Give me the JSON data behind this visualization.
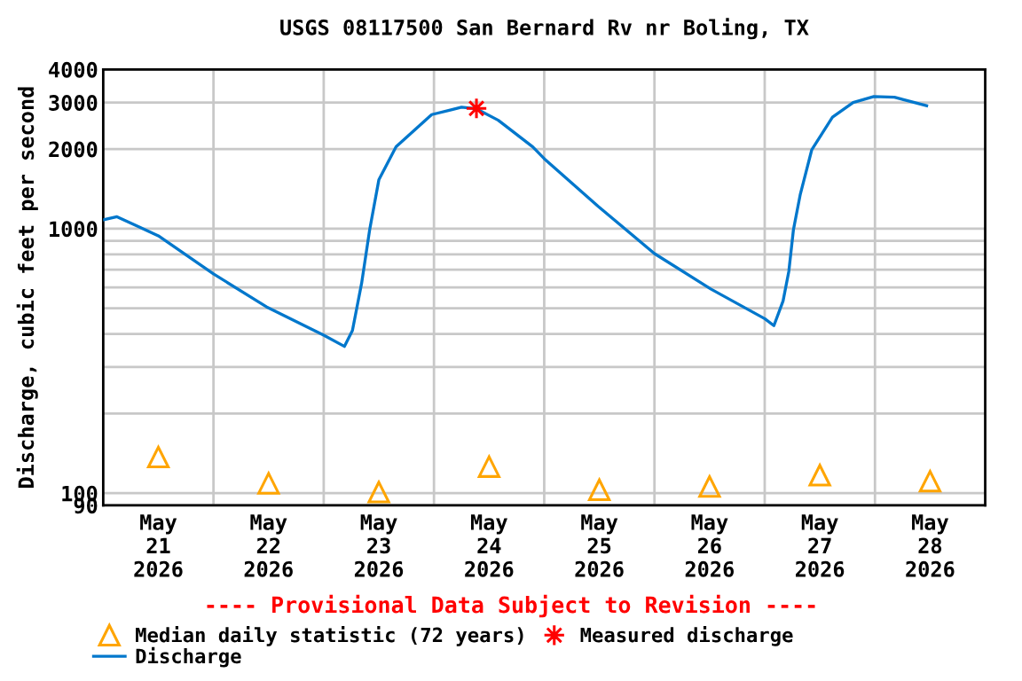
{
  "chart_data": {
    "type": "line",
    "title": "USGS 08117500 San Bernard Rv nr Boling, TX",
    "ylabel": "Discharge, cubic feet per second",
    "log": "y",
    "grid": true,
    "legend": "bottom",
    "xlim": [
      "2026-05-21T00:00",
      "2026-05-29T00:00"
    ],
    "xticks": [
      {
        "value": "2026-05-21T12:00",
        "label": "May\n21\n2026"
      },
      {
        "value": "2026-05-22T12:00",
        "label": "May\n22\n2026"
      },
      {
        "value": "2026-05-23T12:00",
        "label": "May\n23\n2026"
      },
      {
        "value": "2026-05-24T12:00",
        "label": "May\n24\n2026"
      },
      {
        "value": "2026-05-25T12:00",
        "label": "May\n25\n2026"
      },
      {
        "value": "2026-05-26T12:00",
        "label": "May\n26\n2026"
      },
      {
        "value": "2026-05-27T12:00",
        "label": "May\n27\n2026"
      },
      {
        "value": "2026-05-28T12:00",
        "label": "May\n28\n2026"
      },
      {
        "value": "2026-05-22T00:00",
        "label": null
      },
      {
        "value": "2026-05-23T00:00",
        "label": null
      },
      {
        "value": "2026-05-24T00:00",
        "label": null
      },
      {
        "value": "2026-05-25T00:00",
        "label": null
      },
      {
        "value": "2026-05-26T00:00",
        "label": null
      },
      {
        "value": "2026-05-27T00:00",
        "label": null
      },
      {
        "value": "2026-05-28T00:00",
        "label": null
      }
    ],
    "ylim": [
      90,
      4000
    ],
    "yticks": [
      90,
      100,
      {
        "value": 200,
        "label": null
      },
      {
        "value": 300,
        "label": null
      },
      {
        "value": 400,
        "label": null
      },
      {
        "value": 500,
        "label": null
      },
      {
        "value": 600,
        "label": null
      },
      {
        "value": 700,
        "label": null
      },
      {
        "value": 800,
        "label": null
      },
      {
        "value": 900,
        "label": null
      },
      1000,
      2000,
      3000,
      4000
    ],
    "annotations": [
      "---- Provisional Data Subject to Revision ----"
    ],
    "series": [
      {
        "name": "Median daily statistic (72 years)",
        "type": "scatter",
        "marker": "triangle",
        "color": "#ffa500",
        "x": [
          "2026-05-21T12:00",
          "2026-05-22T12:00",
          "2026-05-23T12:00",
          "2026-05-24T12:00",
          "2026-05-25T12:00",
          "2026-05-26T12:00",
          "2026-05-27T12:00",
          "2026-05-28T12:00"
        ],
        "values": [
          137,
          109,
          101,
          126,
          103,
          106,
          117,
          111
        ]
      },
      {
        "name": "Discharge",
        "marker": "none",
        "line_style": "solid",
        "color": "#0077cc",
        "x": [
          "2026-05-21T00:00",
          "2026-05-21T03:00",
          "2026-05-21T12:00",
          "2026-05-22T00:00",
          "2026-05-22T11:30",
          "2026-05-23T00:00",
          "2026-05-23T04:30",
          "2026-05-23T06:15",
          "2026-05-23T08:15",
          "2026-05-23T10:00",
          "2026-05-23T12:00",
          "2026-05-23T15:45",
          "2026-05-23T23:30",
          "2026-05-24T06:00",
          "2026-05-24T09:15",
          "2026-05-24T14:00",
          "2026-05-24T21:30",
          "2026-05-25T00:00",
          "2026-05-25T11:45",
          "2026-05-26T00:00",
          "2026-05-26T12:15",
          "2026-05-27T00:00",
          "2026-05-27T02:00",
          "2026-05-27T04:00",
          "2026-05-27T05:15",
          "2026-05-27T06:15",
          "2026-05-27T07:45",
          "2026-05-27T10:15",
          "2026-05-27T14:45",
          "2026-05-27T19:15",
          "2026-05-27T23:45",
          "2026-05-28T04:15",
          "2026-05-28T11:15"
        ],
        "values": [
          1080,
          1110,
          940,
          675,
          507,
          396,
          359,
          412,
          622,
          990,
          1530,
          2040,
          2700,
          2880,
          2840,
          2570,
          2040,
          1840,
          1215,
          805,
          592,
          457,
          430,
          533,
          690,
          990,
          1350,
          1990,
          2640,
          3000,
          3160,
          3140,
          2920
        ]
      },
      {
        "name": "Measured discharge",
        "type": "scatter",
        "marker": "star",
        "color": "#ff0000",
        "x": [
          "2026-05-24T09:15"
        ],
        "values": [
          2850
        ]
      }
    ]
  }
}
